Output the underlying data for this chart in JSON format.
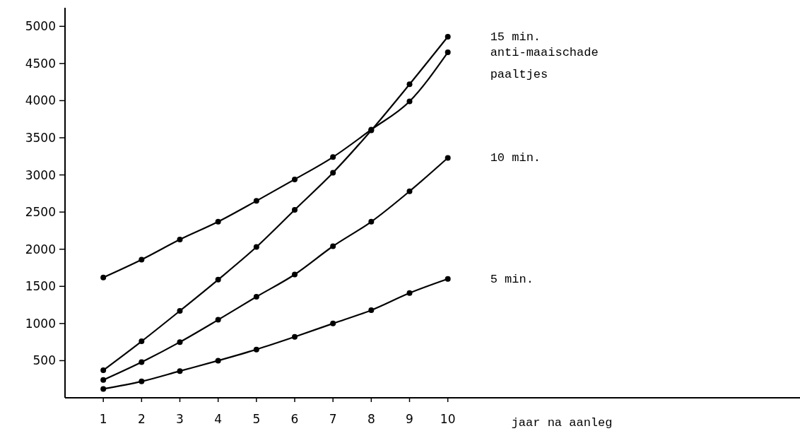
{
  "chart_data": {
    "type": "line",
    "xlabel": "jaar na aanleg",
    "x": [
      1,
      2,
      3,
      4,
      5,
      6,
      7,
      8,
      9,
      10
    ],
    "xlim": [
      0,
      19.2
    ],
    "xticks": [
      1,
      2,
      3,
      4,
      5,
      6,
      7,
      8,
      9,
      10
    ],
    "ylim": [
      0,
      5250
    ],
    "yticks": [
      500,
      1000,
      1500,
      2000,
      2500,
      3000,
      3500,
      4000,
      4500,
      5000
    ],
    "grid": false,
    "marker": "circle",
    "line_style": "solid",
    "series": [
      {
        "name": "15 min.",
        "color": "#000000",
        "values": [
          370,
          760,
          1170,
          1590,
          2030,
          2530,
          3030,
          3600,
          4220,
          4860
        ]
      },
      {
        "name": "anti-maaischade paaltjes",
        "color": "#000000",
        "values": [
          1620,
          1860,
          2130,
          2370,
          2650,
          2940,
          3240,
          3610,
          3990,
          4650
        ]
      },
      {
        "name": "10 min.",
        "color": "#000000",
        "values": [
          240,
          480,
          750,
          1050,
          1360,
          1660,
          2040,
          2370,
          2780,
          3230
        ]
      },
      {
        "name": "5 min.",
        "color": "#000000",
        "values": [
          120,
          220,
          360,
          500,
          650,
          820,
          1000,
          1180,
          1410,
          1600
        ]
      }
    ]
  }
}
